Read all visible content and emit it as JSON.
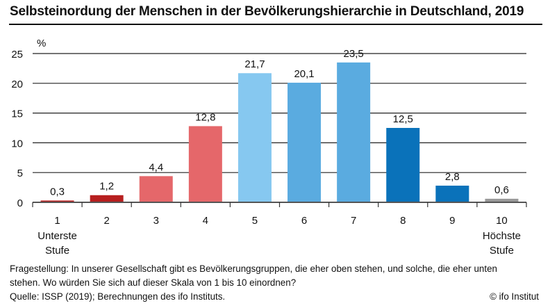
{
  "chart_data": {
    "type": "bar",
    "title": "Selbsteinordung der Menschen in der Bevölkerungshierarchie in Deutschland, 2019",
    "xlabel": "",
    "ylabel": "%",
    "ylim": [
      0,
      25
    ],
    "yticks": [
      0,
      5,
      10,
      15,
      20,
      25
    ],
    "grid": true,
    "categories": [
      "1",
      "2",
      "3",
      "4",
      "5",
      "6",
      "7",
      "8",
      "9",
      "10"
    ],
    "category_sublabels": [
      "Unterste\nStufe",
      "",
      "",
      "",
      "",
      "",
      "",
      "",
      "",
      "Höchste\nStufe"
    ],
    "values": [
      0.3,
      1.2,
      4.4,
      12.8,
      21.7,
      20.1,
      23.5,
      12.5,
      2.8,
      0.6
    ],
    "data_labels": [
      "0,3",
      "1,2",
      "4,4",
      "12,8",
      "21,7",
      "20,1",
      "23,5",
      "12,5",
      "2,8",
      "0,6"
    ],
    "colors": [
      "#b71f1f",
      "#b71f1f",
      "#e5676a",
      "#e5676a",
      "#86c8f0",
      "#5aabe0",
      "#5aabe0",
      "#0a72ba",
      "#0a72ba",
      "#999999"
    ]
  },
  "footer": {
    "question_line1": "Fragestellung: In unserer Gesellschaft gibt es Bevölkerungsgruppen, die eher oben stehen, und solche, die eher unten",
    "question_line2": "stehen. Wo würden Sie sich auf dieser Skala von 1 bis 10 einordnen?",
    "source": "Quelle: ISSP (2019); Berechnungen des ifo Instituts.",
    "copyright": "© ifo Institut"
  }
}
